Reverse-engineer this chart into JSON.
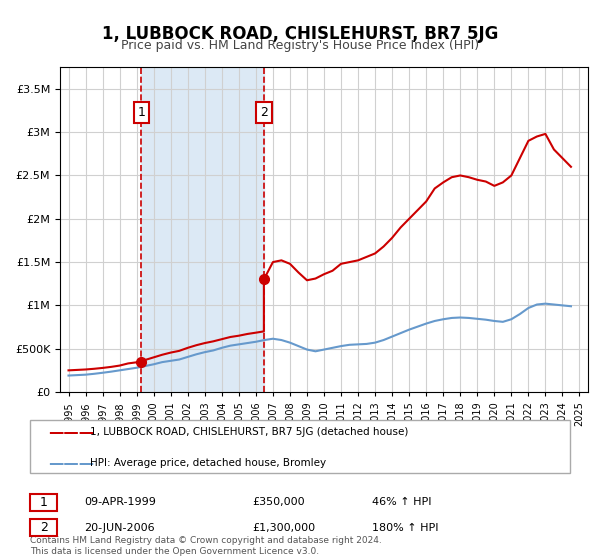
{
  "title": "1, LUBBOCK ROAD, CHISLEHURST, BR7 5JG",
  "subtitle": "Price paid vs. HM Land Registry's House Price Index (HPI)",
  "legend_label_red": "1, LUBBOCK ROAD, CHISLEHURST, BR7 5JG (detached house)",
  "legend_label_blue": "HPI: Average price, detached house, Bromley",
  "transaction1_label": "1",
  "transaction1_date": "09-APR-1999",
  "transaction1_price": "£350,000",
  "transaction1_hpi": "46% ↑ HPI",
  "transaction1_year": 1999.27,
  "transaction1_value": 350000,
  "transaction2_label": "2",
  "transaction2_date": "20-JUN-2006",
  "transaction2_price": "£1,300,000",
  "transaction2_hpi": "180% ↑ HPI",
  "transaction2_year": 2006.47,
  "transaction2_value": 1300000,
  "shade_start": 1999.27,
  "shade_end": 2006.47,
  "ylim_max": 3750000,
  "ylim_min": 0,
  "xlim_min": 1994.5,
  "xlim_max": 2025.5,
  "grid_color": "#d0d0d0",
  "shade_color": "#dce9f5",
  "red_color": "#cc0000",
  "blue_color": "#6699cc",
  "red_dot_color": "#cc0000",
  "copyright_text": "Contains HM Land Registry data © Crown copyright and database right 2024.\nThis data is licensed under the Open Government Licence v3.0.",
  "red_line_data_x": [
    1995.0,
    1995.5,
    1996.0,
    1996.5,
    1997.0,
    1997.5,
    1998.0,
    1998.5,
    1999.27,
    1999.5,
    2000.0,
    2000.5,
    2001.0,
    2001.5,
    2002.0,
    2002.5,
    2003.0,
    2003.5,
    2004.0,
    2004.5,
    2005.0,
    2005.5,
    2006.0,
    2006.47,
    2006.47,
    2007.0,
    2007.5,
    2008.0,
    2008.5,
    2009.0,
    2009.5,
    2010.0,
    2010.5,
    2011.0,
    2011.5,
    2012.0,
    2012.5,
    2013.0,
    2013.5,
    2014.0,
    2014.5,
    2015.0,
    2015.5,
    2016.0,
    2016.5,
    2017.0,
    2017.5,
    2018.0,
    2018.5,
    2019.0,
    2019.5,
    2020.0,
    2020.5,
    2021.0,
    2021.5,
    2022.0,
    2022.5,
    2023.0,
    2023.5,
    2024.0,
    2024.5
  ],
  "red_line_data_y": [
    250000,
    255000,
    260000,
    268000,
    278000,
    290000,
    305000,
    330000,
    350000,
    370000,
    400000,
    430000,
    455000,
    475000,
    510000,
    540000,
    565000,
    585000,
    610000,
    635000,
    650000,
    670000,
    685000,
    700000,
    1300000,
    1500000,
    1520000,
    1480000,
    1380000,
    1290000,
    1310000,
    1360000,
    1400000,
    1480000,
    1500000,
    1520000,
    1560000,
    1600000,
    1680000,
    1780000,
    1900000,
    2000000,
    2100000,
    2200000,
    2350000,
    2420000,
    2480000,
    2500000,
    2480000,
    2450000,
    2430000,
    2380000,
    2420000,
    2500000,
    2700000,
    2900000,
    2950000,
    2980000,
    2800000,
    2700000,
    2600000
  ],
  "blue_line_data_x": [
    1995.0,
    1995.5,
    1996.0,
    1996.5,
    1997.0,
    1997.5,
    1998.0,
    1998.5,
    1999.0,
    1999.5,
    2000.0,
    2000.5,
    2001.0,
    2001.5,
    2002.0,
    2002.5,
    2003.0,
    2003.5,
    2004.0,
    2004.5,
    2005.0,
    2005.5,
    2006.0,
    2006.5,
    2007.0,
    2007.5,
    2008.0,
    2008.5,
    2009.0,
    2009.5,
    2010.0,
    2010.5,
    2011.0,
    2011.5,
    2012.0,
    2012.5,
    2013.0,
    2013.5,
    2014.0,
    2014.5,
    2015.0,
    2015.5,
    2016.0,
    2016.5,
    2017.0,
    2017.5,
    2018.0,
    2018.5,
    2019.0,
    2019.5,
    2020.0,
    2020.5,
    2021.0,
    2021.5,
    2022.0,
    2022.5,
    2023.0,
    2023.5,
    2024.0,
    2024.5
  ],
  "blue_line_data_y": [
    190000,
    195000,
    200000,
    210000,
    222000,
    235000,
    250000,
    265000,
    280000,
    300000,
    320000,
    345000,
    360000,
    375000,
    405000,
    435000,
    460000,
    480000,
    510000,
    535000,
    550000,
    565000,
    580000,
    600000,
    615000,
    600000,
    570000,
    530000,
    490000,
    470000,
    490000,
    510000,
    530000,
    545000,
    550000,
    555000,
    570000,
    600000,
    640000,
    680000,
    720000,
    755000,
    790000,
    820000,
    840000,
    855000,
    860000,
    855000,
    845000,
    835000,
    820000,
    810000,
    840000,
    900000,
    970000,
    1010000,
    1020000,
    1010000,
    1000000,
    990000
  ]
}
